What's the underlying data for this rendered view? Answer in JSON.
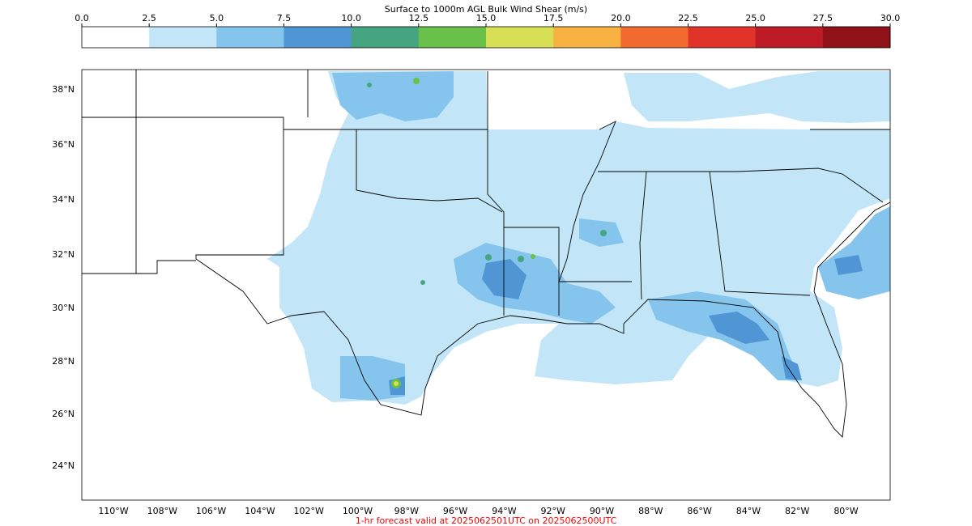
{
  "colorbar": {
    "title": "Surface to 1000m AGL Bulk Wind Shear (m/s)",
    "ticks": [
      "0.0",
      "2.5",
      "5.0",
      "7.5",
      "10.0",
      "12.5",
      "15.0",
      "17.5",
      "20.0",
      "22.5",
      "25.0",
      "27.5",
      "30.0"
    ],
    "colors": [
      "#ffffff",
      "#c2e6f7",
      "#85c4ec",
      "#5096d4",
      "#45a580",
      "#69c14a",
      "#d7df55",
      "#f8b242",
      "#f26a2e",
      "#e0332a",
      "#bf1b26",
      "#8f1219"
    ]
  },
  "map": {
    "lat_labels": [
      "38°N",
      "36°N",
      "34°N",
      "32°N",
      "30°N",
      "28°N",
      "26°N",
      "24°N"
    ],
    "lon_labels": [
      "110°W",
      "108°W",
      "106°W",
      "104°W",
      "102°W",
      "100°W",
      "98°W",
      "96°W",
      "94°W",
      "92°W",
      "90°W",
      "88°W",
      "86°W",
      "84°W",
      "82°W",
      "80°W"
    ]
  },
  "footer": {
    "text": "1-hr forecast valid at 2025062501UTC on 2025062500UTC",
    "color": "#ff0000"
  }
}
